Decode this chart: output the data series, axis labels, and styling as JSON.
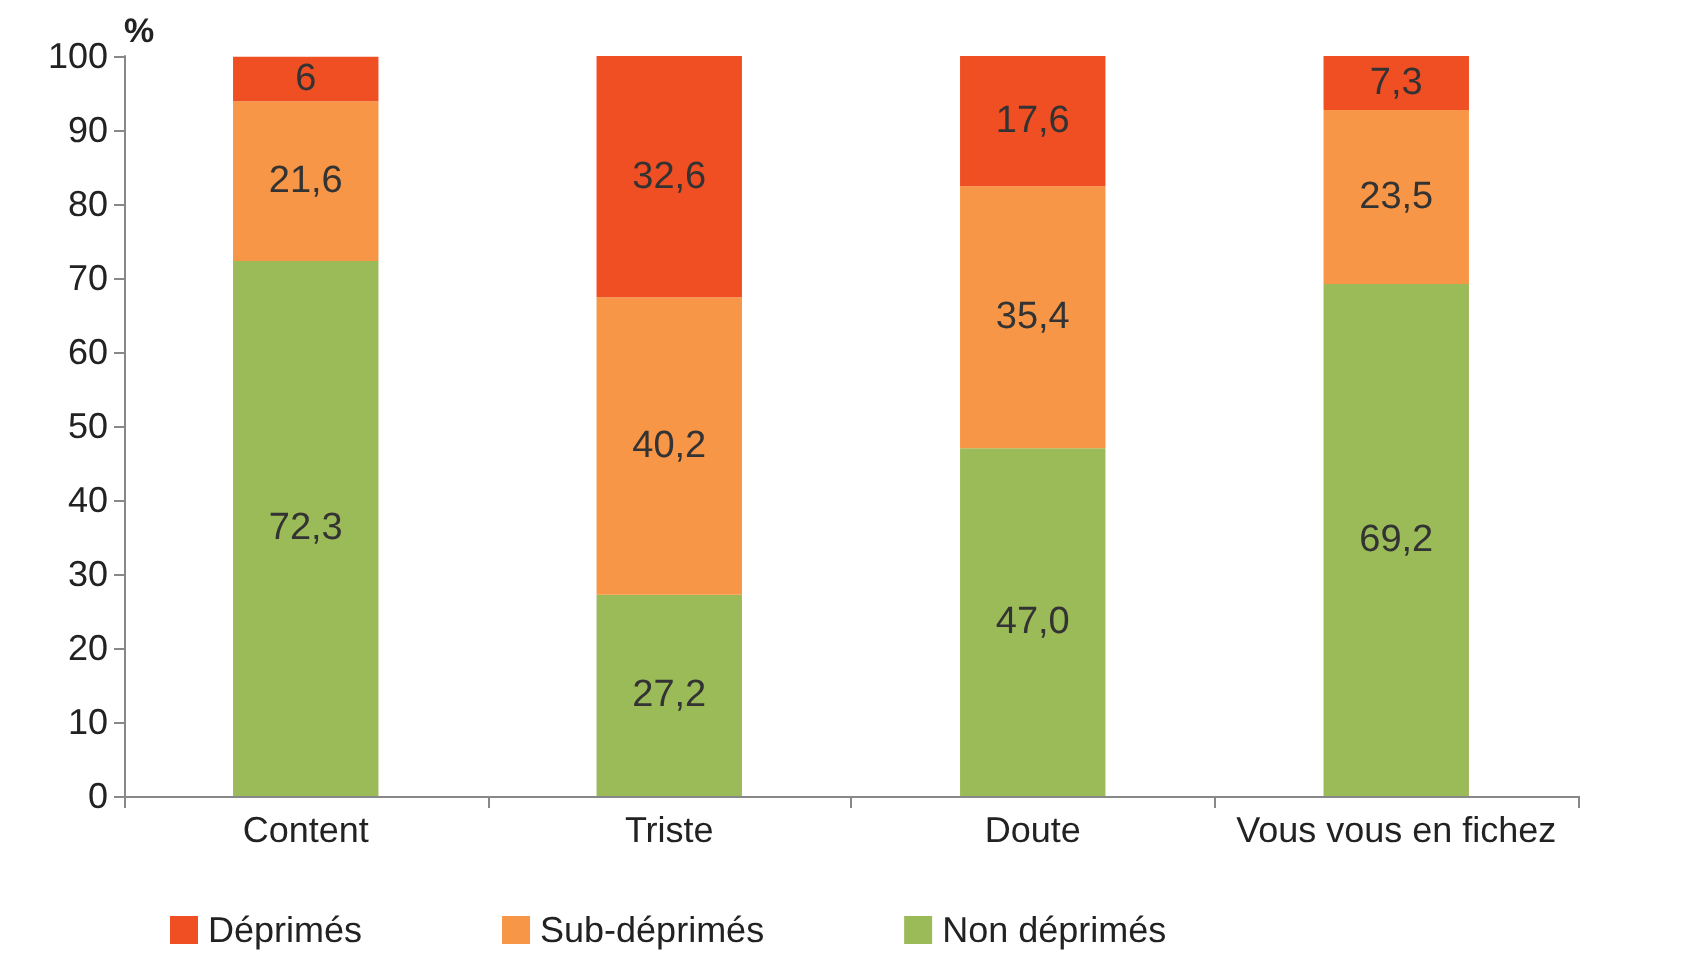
{
  "chart_data": {
    "type": "bar",
    "stacked": true,
    "ylabel": "%",
    "categories": [
      "Content",
      "Triste",
      "Doute",
      "Vous vous en fichez"
    ],
    "series": [
      {
        "name": "Non déprimés",
        "color": "#9bbb59",
        "values": [
          72.3,
          27.2,
          47.0,
          69.2
        ],
        "value_labels": [
          "72,3",
          "27,2",
          "47,0",
          "69,2"
        ]
      },
      {
        "name": "Sub-déprimés",
        "color": "#f79646",
        "values": [
          21.6,
          40.2,
          35.4,
          23.5
        ],
        "value_labels": [
          "21,6",
          "40,2",
          "35,4",
          "23,5"
        ]
      },
      {
        "name": "Déprimés",
        "color": "#f04e23",
        "values": [
          6,
          32.6,
          17.6,
          7.3
        ],
        "value_labels": [
          "6",
          "32,6",
          "17,6",
          "7,3"
        ]
      }
    ],
    "ylim": [
      0,
      100
    ],
    "yticks": [
      0,
      10,
      20,
      30,
      40,
      50,
      60,
      70,
      80,
      90,
      100
    ],
    "grid": false,
    "legend": "bottom left"
  }
}
